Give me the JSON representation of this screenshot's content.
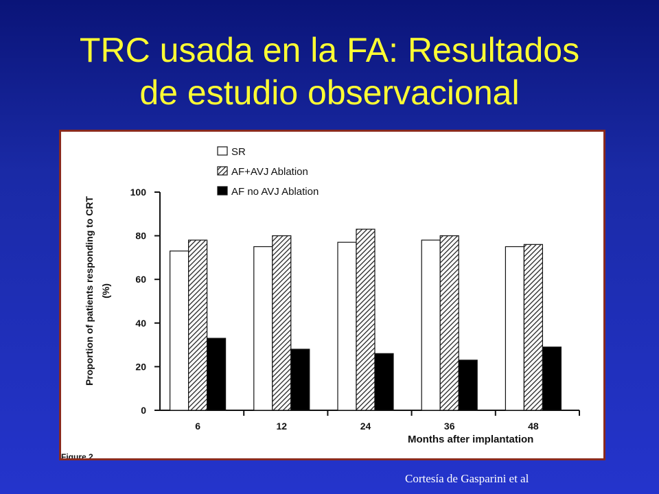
{
  "slide": {
    "title_line1": "TRC usada en la FA: Resultados",
    "title_line2": "de estudio observacional",
    "credit": "Cortesía de Gasparini et al",
    "title_color": "#ffff33",
    "background_color": "#1a2aa6",
    "frame_border_color": "#8a2a1e"
  },
  "chart_data": {
    "type": "bar",
    "xlabel": "Months after implantation",
    "ylabel_line1": "Proportion of patients responding to CRT",
    "ylabel_line2": "(%)",
    "figure_label": "Figure 2",
    "ylim": [
      0,
      100
    ],
    "yticks": [
      "0",
      "20",
      "40",
      "60",
      "80",
      "100"
    ],
    "categories": [
      "6",
      "12",
      "24",
      "36",
      "48"
    ],
    "series": [
      {
        "name": "SR",
        "fill": "white",
        "values": [
          73,
          75,
          77,
          78,
          75
        ]
      },
      {
        "name": "AF+AVJ Ablation",
        "fill": "hatched",
        "values": [
          78,
          80,
          83,
          80,
          76
        ]
      },
      {
        "name": "AF no AVJ Ablation",
        "fill": "black",
        "values": [
          33,
          28,
          26,
          23,
          29
        ]
      }
    ],
    "legend_position": "top-left",
    "grid": false
  }
}
